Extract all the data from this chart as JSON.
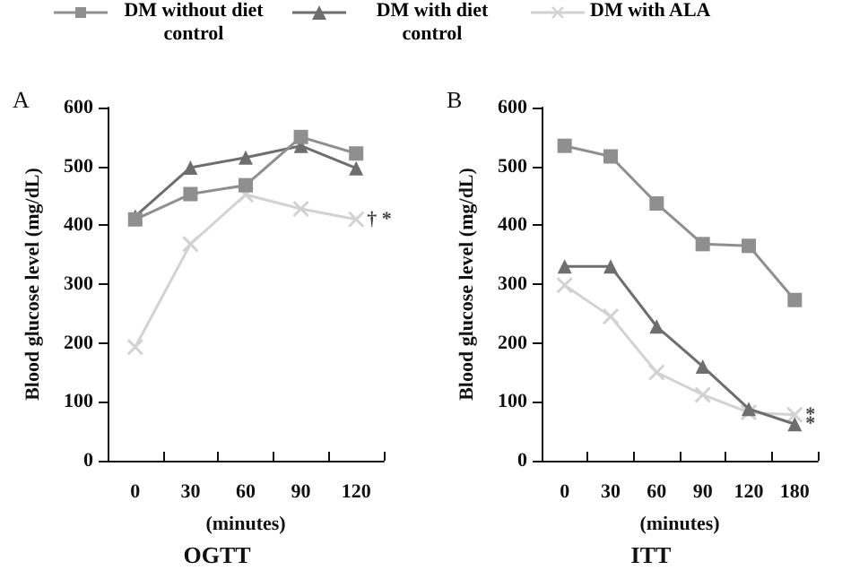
{
  "chart_data": [
    {
      "type": "line",
      "title": "A",
      "xlabel": "(minutes)",
      "ylabel": "Blood glucose level (mg/dL)",
      "categories": [
        "0",
        "30",
        "60",
        "90",
        "120"
      ],
      "ylim": [
        0,
        600
      ],
      "yticks": [
        0,
        100,
        200,
        300,
        400,
        500,
        600
      ],
      "legend": "top",
      "grid": false,
      "series": [
        {
          "name": "DM without diet control",
          "color": "#8f8f8f",
          "marker": "square",
          "values": [
            410,
            453,
            468,
            550,
            522
          ]
        },
        {
          "name": "DM with diet control",
          "color": "#6e6e6e",
          "marker": "triangle",
          "values": [
            415,
            498,
            515,
            535,
            497
          ]
        },
        {
          "name": "DM with ALA",
          "color": "#d2d2d2",
          "marker": "cross",
          "values": [
            193,
            368,
            452,
            428,
            410
          ]
        }
      ],
      "annotations": [
        "OGTT",
        {
          "text": "† *",
          "x": "120",
          "y": 410
        }
      ]
    },
    {
      "type": "line",
      "title": "B",
      "xlabel": "(minutes)",
      "ylabel": "Blood glucose level (mg/dL)",
      "categories": [
        "0",
        "30",
        "60",
        "90",
        "120",
        "180"
      ],
      "ylim": [
        0,
        600
      ],
      "yticks": [
        0,
        100,
        200,
        300,
        400,
        500,
        600
      ],
      "legend": false,
      "grid": false,
      "series": [
        {
          "color": "#8f8f8f",
          "marker": "square",
          "values": [
            535,
            517,
            437,
            368,
            365,
            273
          ]
        },
        {
          "color": "#6e6e6e",
          "marker": "triangle",
          "values": [
            330,
            330,
            228,
            160,
            88,
            62
          ]
        },
        {
          "color": "#d2d2d2",
          "marker": "cross",
          "values": [
            298,
            245,
            150,
            112,
            82,
            78
          ]
        }
      ],
      "annotations": [
        "ITT",
        {
          "text": "*",
          "x": "180",
          "y": 78
        },
        {
          "text": "*",
          "x": "180",
          "y": 62
        }
      ]
    }
  ]
}
